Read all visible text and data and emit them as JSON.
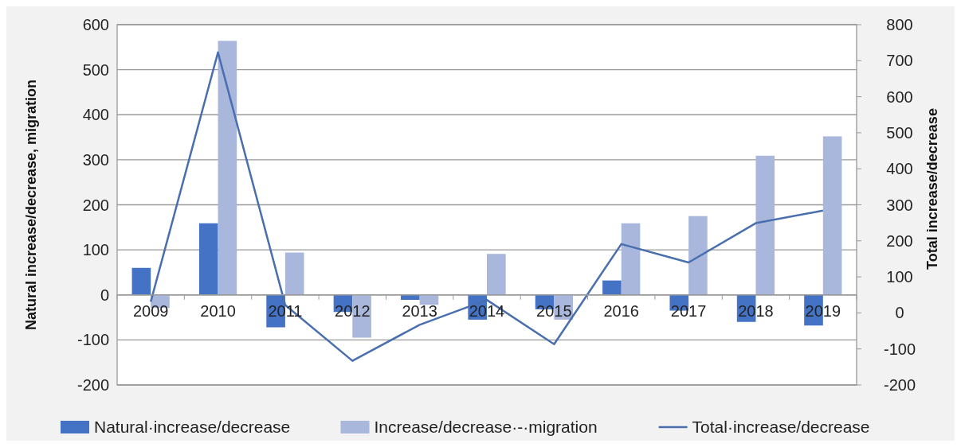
{
  "chart_data": {
    "type": "bar",
    "categories": [
      "2009",
      "2010",
      "2011",
      "2012",
      "2013",
      "2014",
      "2015",
      "2016",
      "2017",
      "2018",
      "2019"
    ],
    "series": [
      {
        "name": "Natural·increase/decrease",
        "color": "#4472c4",
        "values": [
          60,
          159,
          -72,
          -38,
          -11,
          -55,
          -32,
          32,
          -35,
          -60,
          -68
        ]
      },
      {
        "name": "Increase/decrease·-·migration",
        "color": "#a9b7dc",
        "values": [
          -29,
          564,
          94,
          -95,
          -22,
          91,
          -55,
          159,
          175,
          309,
          352
        ]
      },
      {
        "name": "Total·increase/decrease",
        "type": "line",
        "axis": "y2",
        "color": "#4a6fae",
        "values": [
          31,
          723,
          22,
          -133,
          -33,
          36,
          -87,
          191,
          140,
          249,
          284
        ]
      }
    ],
    "ylabel": "Natural increase/decrease, migration",
    "y2label": "Total increase/decrease",
    "ylim": [
      -200,
      600
    ],
    "yticks": [
      -200,
      -100,
      0,
      100,
      200,
      300,
      400,
      500,
      600
    ],
    "y2lim": [
      -200,
      800
    ],
    "y2ticks": [
      -200,
      -100,
      0,
      100,
      200,
      300,
      400,
      500,
      600,
      700,
      800
    ],
    "grid": "y",
    "legend": "bottom"
  }
}
